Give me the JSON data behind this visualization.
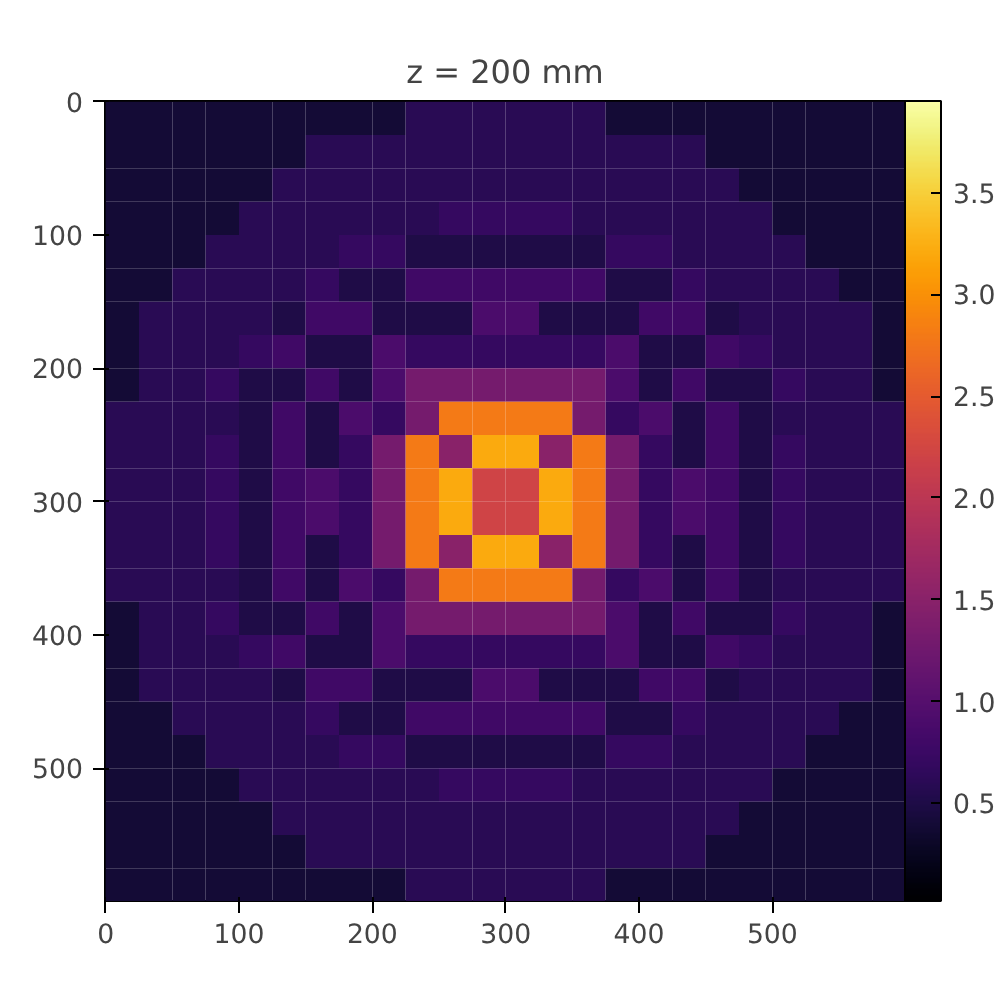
{
  "chart_data": {
    "type": "heatmap",
    "title": "z = 200 mm",
    "x": [
      12.5,
      37.5,
      62.5,
      87.5,
      112.5,
      137.5,
      162.5,
      187.5,
      212.5,
      237.5,
      262.5,
      287.5,
      312.5,
      337.5,
      362.5,
      387.5,
      412.5,
      437.5,
      462.5,
      487.5,
      512.5,
      537.5,
      562.5,
      587.5
    ],
    "y": [
      12.5,
      37.5,
      62.5,
      87.5,
      112.5,
      137.5,
      162.5,
      187.5,
      212.5,
      237.5,
      262.5,
      287.5,
      312.5,
      337.5,
      362.5,
      387.5,
      412.5,
      437.5,
      462.5,
      487.5,
      512.5,
      537.5,
      562.5,
      587.5
    ],
    "xlim": [
      -0.5,
      599.5
    ],
    "ylim": [
      599.5,
      -0.5
    ],
    "xticks": [
      0,
      100,
      200,
      300,
      400,
      500
    ],
    "yticks": [
      0,
      100,
      200,
      300,
      400,
      500
    ],
    "clim": [
      0.02,
      3.95
    ],
    "cticks": [
      0.5,
      {
        "value": 1,
        "label": "1.0"
      },
      1.5,
      {
        "value": 2,
        "label": "2.0"
      },
      2.5,
      {
        "value": 3,
        "label": "3.0"
      },
      3.5
    ],
    "cells": [
      [
        0.4,
        0.4,
        0.4,
        0.4,
        0.4,
        0.4,
        0.4,
        0.4,
        0.4,
        0.6,
        0.6,
        0.6,
        0.6,
        0.6,
        0.6,
        0.4,
        0.4,
        0.4,
        0.4,
        0.4,
        0.4,
        0.4,
        0.4,
        0.4
      ],
      [
        0.4,
        0.4,
        0.4,
        0.4,
        0.4,
        0.4,
        0.6,
        0.6,
        0.6,
        0.6,
        0.6,
        0.6,
        0.6,
        0.6,
        0.6,
        0.6,
        0.6,
        0.6,
        0.4,
        0.4,
        0.4,
        0.4,
        0.4,
        0.4
      ],
      [
        0.4,
        0.4,
        0.4,
        0.4,
        0.4,
        0.6,
        0.6,
        0.6,
        0.6,
        0.6,
        0.6,
        0.6,
        0.6,
        0.6,
        0.6,
        0.6,
        0.6,
        0.6,
        0.6,
        0.4,
        0.4,
        0.4,
        0.4,
        0.4
      ],
      [
        0.4,
        0.4,
        0.4,
        0.4,
        0.6,
        0.6,
        0.6,
        0.6,
        0.6,
        0.6,
        0.7,
        0.7,
        0.7,
        0.7,
        0.6,
        0.6,
        0.6,
        0.6,
        0.6,
        0.6,
        0.4,
        0.4,
        0.4,
        0.4
      ],
      [
        0.4,
        0.4,
        0.4,
        0.6,
        0.6,
        0.6,
        0.6,
        0.7,
        0.7,
        0.5,
        0.5,
        0.5,
        0.5,
        0.5,
        0.5,
        0.7,
        0.7,
        0.6,
        0.6,
        0.6,
        0.6,
        0.4,
        0.4,
        0.4
      ],
      [
        0.4,
        0.4,
        0.6,
        0.6,
        0.6,
        0.6,
        0.7,
        0.5,
        0.5,
        0.8,
        0.8,
        0.8,
        0.8,
        0.8,
        0.8,
        0.5,
        0.5,
        0.7,
        0.6,
        0.6,
        0.6,
        0.6,
        0.4,
        0.4
      ],
      [
        0.4,
        0.6,
        0.6,
        0.6,
        0.6,
        0.5,
        0.8,
        0.8,
        0.5,
        0.5,
        0.5,
        0.9,
        0.9,
        0.5,
        0.5,
        0.5,
        0.8,
        0.8,
        0.5,
        0.6,
        0.6,
        0.6,
        0.6,
        0.4
      ],
      [
        0.4,
        0.6,
        0.6,
        0.6,
        0.7,
        0.8,
        0.5,
        0.5,
        0.9,
        0.7,
        0.7,
        0.7,
        0.7,
        0.7,
        0.7,
        0.9,
        0.5,
        0.5,
        0.8,
        0.7,
        0.6,
        0.6,
        0.6,
        0.4
      ],
      [
        0.4,
        0.6,
        0.6,
        0.7,
        0.5,
        0.5,
        0.8,
        0.5,
        0.9,
        1.3,
        1.3,
        1.3,
        1.3,
        1.3,
        1.3,
        0.9,
        0.5,
        0.8,
        0.5,
        0.5,
        0.7,
        0.6,
        0.6,
        0.4
      ],
      [
        0.6,
        0.6,
        0.6,
        0.6,
        0.5,
        0.8,
        0.5,
        0.9,
        0.7,
        1.3,
        2.8,
        2.8,
        2.8,
        2.8,
        1.3,
        0.7,
        0.9,
        0.5,
        0.8,
        0.5,
        0.6,
        0.6,
        0.6,
        0.6
      ],
      [
        0.6,
        0.6,
        0.6,
        0.7,
        0.5,
        0.8,
        0.5,
        0.7,
        1.3,
        2.8,
        1.5,
        3.2,
        3.2,
        1.5,
        2.8,
        1.3,
        0.7,
        0.5,
        0.8,
        0.5,
        0.7,
        0.6,
        0.6,
        0.6
      ],
      [
        0.6,
        0.6,
        0.6,
        0.7,
        0.5,
        0.8,
        0.9,
        0.7,
        1.3,
        2.8,
        3.2,
        2.2,
        2.2,
        3.2,
        2.8,
        1.3,
        0.7,
        0.9,
        0.8,
        0.5,
        0.7,
        0.6,
        0.6,
        0.6
      ],
      [
        0.6,
        0.6,
        0.6,
        0.7,
        0.5,
        0.8,
        0.9,
        0.7,
        1.3,
        2.8,
        3.2,
        2.2,
        2.2,
        3.2,
        2.8,
        1.3,
        0.7,
        0.9,
        0.8,
        0.5,
        0.7,
        0.6,
        0.6,
        0.6
      ],
      [
        0.6,
        0.6,
        0.6,
        0.7,
        0.5,
        0.8,
        0.5,
        0.7,
        1.3,
        2.8,
        1.5,
        3.2,
        3.2,
        1.5,
        2.8,
        1.3,
        0.7,
        0.5,
        0.8,
        0.5,
        0.7,
        0.6,
        0.6,
        0.6
      ],
      [
        0.6,
        0.6,
        0.6,
        0.6,
        0.5,
        0.8,
        0.5,
        0.9,
        0.7,
        1.3,
        2.8,
        2.8,
        2.8,
        2.8,
        1.3,
        0.7,
        0.9,
        0.5,
        0.8,
        0.5,
        0.6,
        0.6,
        0.6,
        0.6
      ],
      [
        0.4,
        0.6,
        0.6,
        0.7,
        0.5,
        0.5,
        0.8,
        0.5,
        0.9,
        1.3,
        1.3,
        1.3,
        1.3,
        1.3,
        1.3,
        0.9,
        0.5,
        0.8,
        0.5,
        0.5,
        0.7,
        0.6,
        0.6,
        0.4
      ],
      [
        0.4,
        0.6,
        0.6,
        0.6,
        0.7,
        0.8,
        0.5,
        0.5,
        0.9,
        0.7,
        0.7,
        0.7,
        0.7,
        0.7,
        0.7,
        0.9,
        0.5,
        0.5,
        0.8,
        0.7,
        0.6,
        0.6,
        0.6,
        0.4
      ],
      [
        0.4,
        0.6,
        0.6,
        0.6,
        0.6,
        0.5,
        0.8,
        0.8,
        0.5,
        0.5,
        0.5,
        0.9,
        0.9,
        0.5,
        0.5,
        0.5,
        0.8,
        0.8,
        0.5,
        0.6,
        0.6,
        0.6,
        0.6,
        0.4
      ],
      [
        0.4,
        0.4,
        0.6,
        0.6,
        0.6,
        0.6,
        0.7,
        0.5,
        0.5,
        0.8,
        0.8,
        0.8,
        0.8,
        0.8,
        0.8,
        0.5,
        0.5,
        0.7,
        0.6,
        0.6,
        0.6,
        0.6,
        0.4,
        0.4
      ],
      [
        0.4,
        0.4,
        0.4,
        0.6,
        0.6,
        0.6,
        0.6,
        0.7,
        0.7,
        0.5,
        0.5,
        0.5,
        0.5,
        0.5,
        0.5,
        0.7,
        0.7,
        0.6,
        0.6,
        0.6,
        0.6,
        0.4,
        0.4,
        0.4
      ],
      [
        0.4,
        0.4,
        0.4,
        0.4,
        0.6,
        0.6,
        0.6,
        0.6,
        0.6,
        0.6,
        0.7,
        0.7,
        0.7,
        0.7,
        0.6,
        0.6,
        0.6,
        0.6,
        0.6,
        0.6,
        0.4,
        0.4,
        0.4,
        0.4
      ],
      [
        0.4,
        0.4,
        0.4,
        0.4,
        0.4,
        0.6,
        0.6,
        0.6,
        0.6,
        0.6,
        0.6,
        0.6,
        0.6,
        0.6,
        0.6,
        0.6,
        0.6,
        0.6,
        0.6,
        0.4,
        0.4,
        0.4,
        0.4,
        0.4
      ],
      [
        0.4,
        0.4,
        0.4,
        0.4,
        0.4,
        0.4,
        0.6,
        0.6,
        0.6,
        0.6,
        0.6,
        0.6,
        0.6,
        0.6,
        0.6,
        0.6,
        0.6,
        0.6,
        0.4,
        0.4,
        0.4,
        0.4,
        0.4,
        0.4
      ],
      [
        0.4,
        0.4,
        0.4,
        0.4,
        0.4,
        0.4,
        0.4,
        0.4,
        0.4,
        0.6,
        0.6,
        0.6,
        0.6,
        0.6,
        0.6,
        0.4,
        0.4,
        0.4,
        0.4,
        0.4,
        0.4,
        0.4,
        0.4,
        0.4
      ]
    ]
  }
}
